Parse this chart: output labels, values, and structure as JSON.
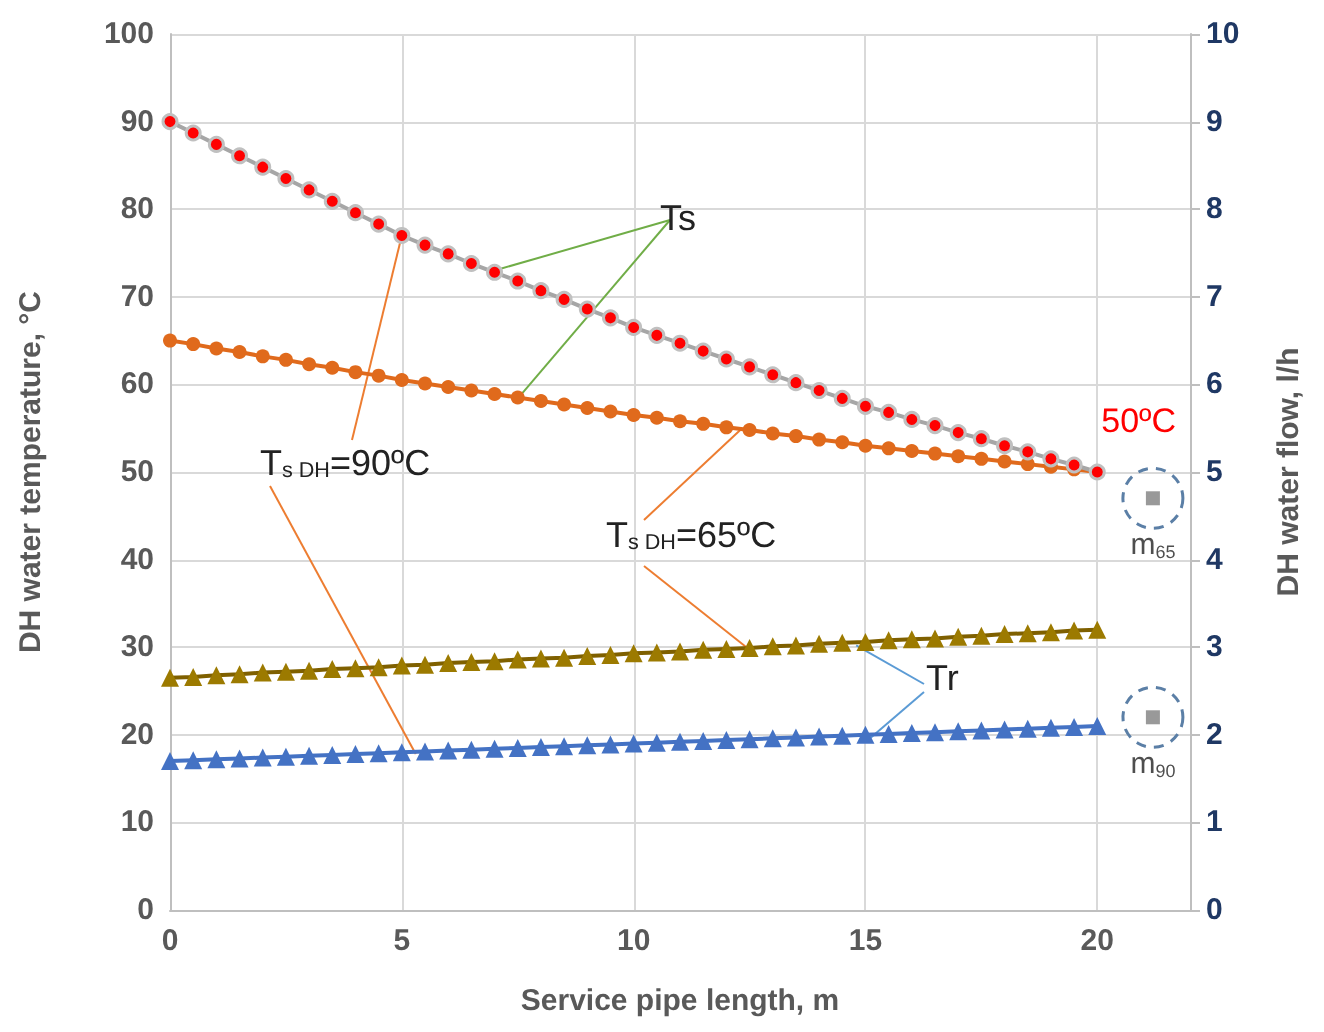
{
  "chart_data": {
    "type": "line",
    "xlabel": "Service pipe length, m",
    "ylabel": "DH water temperature, °C",
    "y2label": "DH water flow, l/h",
    "x": [
      0,
      0.5,
      1,
      1.5,
      2,
      2.5,
      3,
      3.5,
      4,
      4.5,
      5,
      5.5,
      6,
      6.5,
      7,
      7.5,
      8,
      8.5,
      9,
      9.5,
      10,
      10.5,
      11,
      11.5,
      12,
      12.5,
      13,
      13.5,
      14,
      14.5,
      15,
      15.5,
      16,
      16.5,
      17,
      17.5,
      18,
      18.5,
      19,
      19.5,
      20
    ],
    "series": [
      {
        "color": "#ff0000",
        "marker": "circle",
        "values": [
          90,
          88.7,
          87.4,
          86.1,
          84.8,
          83.5,
          82.2,
          80.9,
          79.6,
          78.3,
          77,
          75.9,
          74.9,
          73.8,
          72.8,
          71.8,
          70.7,
          69.7,
          68.6,
          67.6,
          66.5,
          65.6,
          64.7,
          63.8,
          62.9,
          62,
          61.1,
          60.2,
          59.3,
          58.4,
          57.5,
          56.8,
          56,
          55.3,
          54.5,
          53.8,
          53,
          52.3,
          51.5,
          50.8,
          50
        ]
      },
      {
        "color": "#e06a1c",
        "marker": "circle",
        "values": [
          65,
          64.6,
          64.1,
          63.7,
          63.2,
          62.8,
          62.3,
          61.9,
          61.4,
          61,
          60.5,
          60.1,
          59.7,
          59.3,
          58.9,
          58.5,
          58.1,
          57.7,
          57.3,
          56.9,
          56.5,
          56.2,
          55.8,
          55.5,
          55.1,
          54.8,
          54.4,
          54.1,
          53.7,
          53.4,
          53,
          52.7,
          52.4,
          52.1,
          51.8,
          51.5,
          51.2,
          50.9,
          50.6,
          50.3,
          50
        ]
      },
      {
        "color": "#9c7a00",
        "marker": "triangle",
        "values": [
          26.5,
          26.6,
          26.8,
          26.9,
          27.1,
          27.2,
          27.3,
          27.5,
          27.6,
          27.7,
          27.9,
          28,
          28.2,
          28.3,
          28.4,
          28.6,
          28.7,
          28.8,
          29,
          29.1,
          29.3,
          29.4,
          29.5,
          29.7,
          29.8,
          29.9,
          30.1,
          30.2,
          30.4,
          30.5,
          30.6,
          30.8,
          30.9,
          31,
          31.2,
          31.3,
          31.5,
          31.6,
          31.7,
          31.9,
          32
        ]
      },
      {
        "color": "#4472c4",
        "marker": "triangle",
        "values": [
          17,
          17.1,
          17.2,
          17.3,
          17.4,
          17.5,
          17.6,
          17.7,
          17.8,
          17.9,
          18,
          18.1,
          18.2,
          18.3,
          18.4,
          18.5,
          18.6,
          18.7,
          18.8,
          18.9,
          19,
          19.1,
          19.2,
          19.3,
          19.4,
          19.5,
          19.6,
          19.7,
          19.8,
          19.9,
          20,
          20.1,
          20.2,
          20.3,
          20.4,
          20.5,
          20.6,
          20.7,
          20.8,
          20.9,
          21
        ]
      },
      {
        "type": "scatter",
        "name": "m$_{65}$",
        "color": "#808080",
        "marker": "square",
        "axis": "y2",
        "x": [
          21.2
        ],
        "values": [
          4.7
        ]
      },
      {
        "type": "scatter",
        "name": "m$_{90}$",
        "color": "#808080",
        "marker": "square",
        "axis": "y2",
        "x": [
          21.2
        ],
        "values": [
          2.2
        ]
      }
    ],
    "xlim": [
      0,
      22
    ],
    "xticks": [
      0,
      5,
      10,
      15,
      20
    ],
    "ylim": [
      0,
      100
    ],
    "yticks": [
      0,
      10,
      20,
      30,
      40,
      50,
      60,
      70,
      80,
      90,
      100
    ],
    "y2lim": [
      0,
      10
    ],
    "y2ticks": [
      0,
      1,
      2,
      3,
      4,
      5,
      6,
      7,
      8,
      9,
      10
    ],
    "grid": true,
    "legend": false,
    "annotations": [
      {
        "text": "Ts",
        "x": 7,
        "y": 73
      },
      {
        "text": "T$_{s DH}$=90ºC",
        "x": 5,
        "y": 77
      },
      {
        "text": "T$_{s DH}$=65ºC",
        "x": 12.3,
        "y": 54.8
      },
      {
        "text": "Tr",
        "x": 14.8,
        "y": 30.2
      },
      {
        "text": "50ºC",
        "x": 20,
        "y": 50
      }
    ]
  }
}
